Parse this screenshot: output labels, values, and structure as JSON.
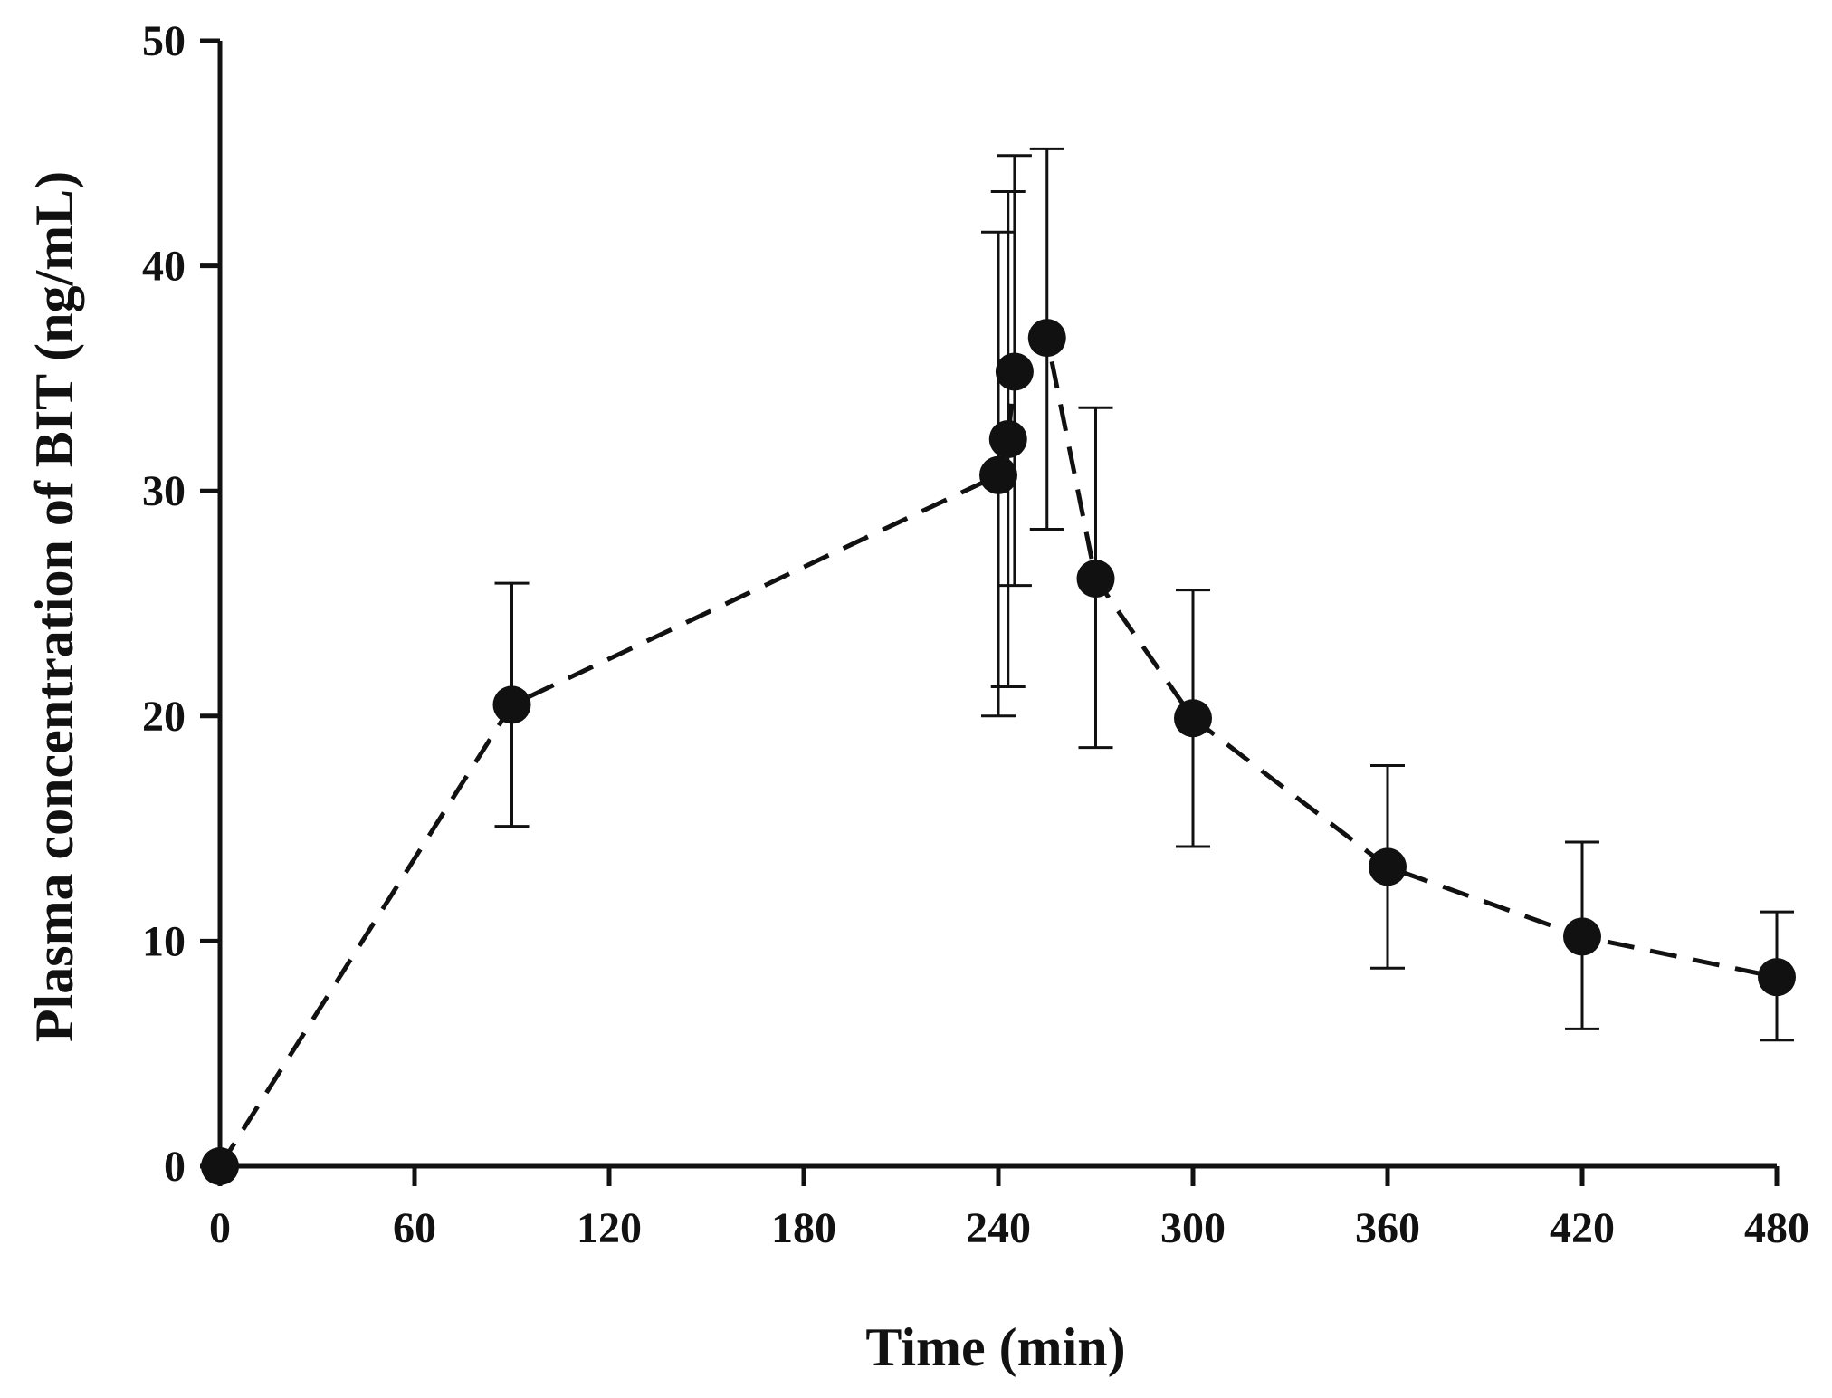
{
  "chart_data": {
    "type": "line",
    "title": "",
    "xlabel": "Time (min)",
    "ylabel": "Plasma concentration of BIT (ng/mL)",
    "xlim": [
      0,
      480
    ],
    "ylim": [
      0,
      50
    ],
    "x_ticks": [
      0,
      60,
      120,
      180,
      240,
      300,
      360,
      420,
      480
    ],
    "y_ticks": [
      0,
      10,
      20,
      30,
      40,
      50
    ],
    "x_tick_labels": [
      "0",
      "60",
      "120",
      "180",
      "240",
      "300",
      "360",
      "420",
      "480"
    ],
    "y_tick_labels": [
      "0",
      "10",
      "20",
      "30",
      "40",
      "50"
    ],
    "grid": false,
    "line_style": "dashed",
    "marker": "filled-circle",
    "colors": {
      "series": "#111111",
      "background": "#ffffff"
    },
    "series": [
      {
        "name": "BIT",
        "points": [
          {
            "x": 0,
            "y": 0,
            "err_low": 0,
            "err_high": 0
          },
          {
            "x": 90,
            "y": 20.5,
            "err_low": 15.1,
            "err_high": 25.9
          },
          {
            "x": 240,
            "y": 30.7,
            "err_low": 20.0,
            "err_high": 41.5
          },
          {
            "x": 243,
            "y": 32.3,
            "err_low": 21.3,
            "err_high": 43.3
          },
          {
            "x": 245,
            "y": 35.3,
            "err_low": 25.8,
            "err_high": 44.9
          },
          {
            "x": 255,
            "y": 36.8,
            "err_low": 28.3,
            "err_high": 45.2
          },
          {
            "x": 270,
            "y": 26.1,
            "err_low": 18.6,
            "err_high": 33.7
          },
          {
            "x": 300,
            "y": 19.9,
            "err_low": 14.2,
            "err_high": 25.6
          },
          {
            "x": 360,
            "y": 13.3,
            "err_low": 8.8,
            "err_high": 17.8
          },
          {
            "x": 420,
            "y": 10.2,
            "err_low": 6.1,
            "err_high": 14.4
          },
          {
            "x": 480,
            "y": 8.4,
            "err_low": 5.6,
            "err_high": 11.3
          }
        ]
      }
    ]
  }
}
